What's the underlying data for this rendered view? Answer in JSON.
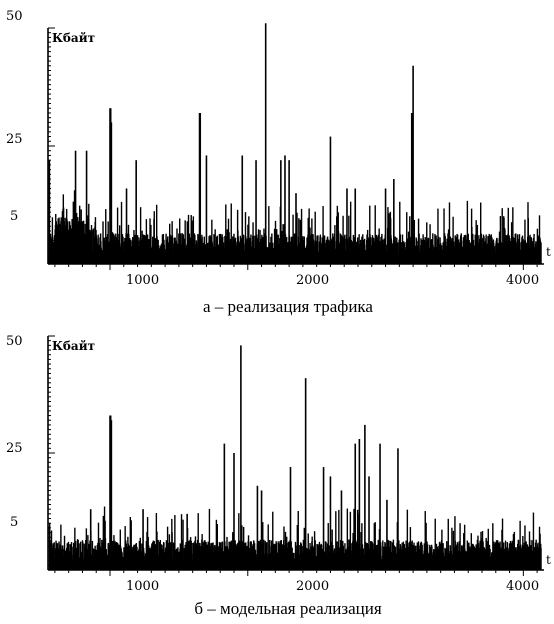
{
  "chart_data": [
    {
      "type": "bar",
      "caption": "а – реализация трафика",
      "ylabel": "Кбайт",
      "xlabel": "t",
      "xlim": [
        550,
        4150
      ],
      "ylim": [
        0,
        50
      ],
      "xticks": [
        1000,
        2000,
        4000
      ],
      "xtick_labels": [
        "1000",
        "2000",
        "4000"
      ],
      "yticks": [
        5,
        25,
        50
      ],
      "ytick_labels": [
        "5",
        "25",
        "50"
      ],
      "grid": false,
      "seed": 7,
      "spikes": [
        {
          "t": 560,
          "v": 22
        },
        {
          "t": 750,
          "v": 24
        },
        {
          "t": 830,
          "v": 24
        },
        {
          "t": 1000,
          "v": 33
        },
        {
          "t": 1005,
          "v": 33
        },
        {
          "t": 1010,
          "v": 30
        },
        {
          "t": 1120,
          "v": 16
        },
        {
          "t": 1190,
          "v": 22
        },
        {
          "t": 1650,
          "v": 32
        },
        {
          "t": 1655,
          "v": 32
        },
        {
          "t": 1700,
          "v": 23
        },
        {
          "t": 1960,
          "v": 23
        },
        {
          "t": 2060,
          "v": 22
        },
        {
          "t": 2130,
          "v": 51
        },
        {
          "t": 2240,
          "v": 22
        },
        {
          "t": 2270,
          "v": 23
        },
        {
          "t": 2300,
          "v": 22
        },
        {
          "t": 2350,
          "v": 15
        },
        {
          "t": 2600,
          "v": 27
        },
        {
          "t": 2720,
          "v": 16
        },
        {
          "t": 2780,
          "v": 16
        },
        {
          "t": 3000,
          "v": 16
        },
        {
          "t": 3060,
          "v": 18
        },
        {
          "t": 3190,
          "v": 32
        },
        {
          "t": 3200,
          "v": 42
        }
      ]
    },
    {
      "type": "bar",
      "caption": "б – модельная реализация",
      "ylabel": "Кбайт",
      "xlabel": "t",
      "xlim": [
        550,
        4150
      ],
      "ylim": [
        0,
        50
      ],
      "xticks": [
        1000,
        2000,
        4000
      ],
      "xtick_labels": [
        "1000",
        "2000",
        "4000"
      ],
      "yticks": [
        5,
        25,
        50
      ],
      "ytick_labels": [
        "5",
        "25",
        "50"
      ],
      "grid": false,
      "seed": 19,
      "spikes": [
        {
          "t": 1000,
          "v": 33
        },
        {
          "t": 1005,
          "v": 33
        },
        {
          "t": 1010,
          "v": 32
        },
        {
          "t": 860,
          "v": 13
        },
        {
          "t": 1240,
          "v": 13
        },
        {
          "t": 1560,
          "v": 12
        },
        {
          "t": 1830,
          "v": 27
        },
        {
          "t": 1900,
          "v": 25
        },
        {
          "t": 1950,
          "v": 48
        },
        {
          "t": 2070,
          "v": 18
        },
        {
          "t": 2100,
          "v": 17
        },
        {
          "t": 2310,
          "v": 22
        },
        {
          "t": 2420,
          "v": 41
        },
        {
          "t": 2550,
          "v": 22
        },
        {
          "t": 2600,
          "v": 20
        },
        {
          "t": 2680,
          "v": 17
        },
        {
          "t": 2780,
          "v": 27
        },
        {
          "t": 2810,
          "v": 28
        },
        {
          "t": 2850,
          "v": 31
        },
        {
          "t": 2880,
          "v": 20
        },
        {
          "t": 2960,
          "v": 27
        },
        {
          "t": 3010,
          "v": 15
        },
        {
          "t": 3090,
          "v": 26
        }
      ]
    }
  ]
}
